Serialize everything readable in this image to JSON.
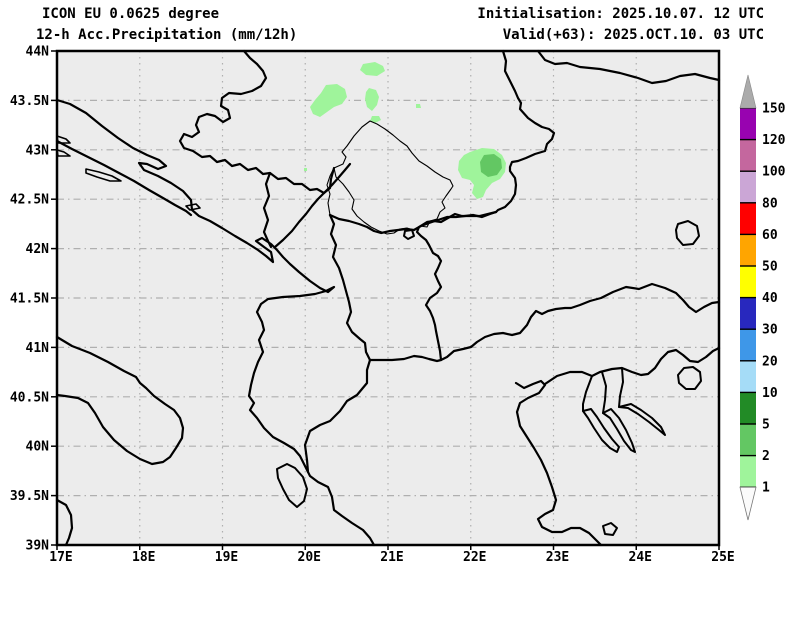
{
  "header": {
    "model_title": "ICON EU 0.0625 degree",
    "product_title": "12-h Acc.Precipitation (mm/12h)",
    "init_label": "Initialisation: 2025.10.07. 12 UTC",
    "valid_label": "Valid(+63): 2025.OCT.10. 03 UTC"
  },
  "map": {
    "lon_min": 17,
    "lon_max": 25,
    "lat_min": 39,
    "lat_max": 44,
    "lat_labels": [
      {
        "text": "44N",
        "lat": 44.0
      },
      {
        "text": "43.5N",
        "lat": 43.5
      },
      {
        "text": "43N",
        "lat": 43.0
      },
      {
        "text": "42.5N",
        "lat": 42.5
      },
      {
        "text": "42N",
        "lat": 42.0
      },
      {
        "text": "41.5N",
        "lat": 41.5
      },
      {
        "text": "41N",
        "lat": 41.0
      },
      {
        "text": "40.5N",
        "lat": 40.5
      },
      {
        "text": "40N",
        "lat": 40.0
      },
      {
        "text": "39.5N",
        "lat": 39.5
      },
      {
        "text": "39N",
        "lat": 39.0
      }
    ],
    "lon_labels": [
      {
        "text": "17E",
        "lon": 17
      },
      {
        "text": "18E",
        "lon": 18
      },
      {
        "text": "19E",
        "lon": 19
      },
      {
        "text": "20E",
        "lon": 20
      },
      {
        "text": "21E",
        "lon": 21
      },
      {
        "text": "22E",
        "lon": 22
      },
      {
        "text": "23E",
        "lon": 23
      },
      {
        "text": "24E",
        "lon": 24
      },
      {
        "text": "25E",
        "lon": 25
      }
    ],
    "grid_lats": [
      43.5,
      43.0,
      42.5,
      42.0,
      41.5,
      41.0,
      40.5,
      40.0,
      39.5
    ],
    "grid_lons": [
      18,
      19,
      20,
      21,
      22,
      23,
      24
    ],
    "bg_color": "#ECECEC",
    "grid_color": "#AFAFAF",
    "outline_color": "#000000"
  },
  "colorbar": {
    "levels": [
      1,
      2,
      5,
      10,
      20,
      30,
      40,
      50,
      60,
      80,
      100,
      120,
      150
    ],
    "segment_colors": [
      "#9FF49B",
      "#63C763",
      "#228B26",
      "#A5DCF7",
      "#3E97E8",
      "#2828BE",
      "#FFFF00",
      "#FFA500",
      "#FF0000",
      "#CBA6D6",
      "#C4679E",
      "#9803B0"
    ],
    "over_arrow_color": "#ABABAB",
    "under_arrow_color": "#FBFBFB",
    "label_color": "#000000"
  },
  "precip_colors": {
    "light": "#9FF49B",
    "medium": "#63C763"
  },
  "precip_areas": [
    {
      "name": "patch-nw-serbia-1",
      "level": "1-2 mm",
      "class": "light",
      "points": [
        [
          363,
          64
        ],
        [
          375,
          62
        ],
        [
          383,
          66
        ],
        [
          385,
          71
        ],
        [
          377,
          76
        ],
        [
          366,
          75
        ],
        [
          360,
          70
        ]
      ]
    },
    {
      "name": "patch-nw-serbia-2",
      "level": "1-2 mm",
      "class": "light",
      "points": [
        [
          326,
          85
        ],
        [
          337,
          84
        ],
        [
          345,
          89
        ],
        [
          347,
          97
        ],
        [
          342,
          104
        ],
        [
          334,
          107
        ],
        [
          327,
          112
        ],
        [
          320,
          117
        ],
        [
          313,
          114
        ],
        [
          310,
          107
        ],
        [
          315,
          100
        ],
        [
          321,
          93
        ]
      ]
    },
    {
      "name": "patch-nw-serbia-3",
      "level": "1-2 mm",
      "class": "light",
      "points": [
        [
          369,
          88
        ],
        [
          376,
          90
        ],
        [
          379,
          97
        ],
        [
          377,
          105
        ],
        [
          372,
          111
        ],
        [
          367,
          107
        ],
        [
          365,
          99
        ],
        [
          366,
          92
        ]
      ]
    },
    {
      "name": "patch-nw-serbia-4",
      "level": "1-2 mm",
      "class": "light",
      "points": [
        [
          372,
          116
        ],
        [
          379,
          116
        ],
        [
          381,
          120
        ],
        [
          375,
          123
        ],
        [
          370,
          121
        ]
      ]
    },
    {
      "name": "patch-dot-1",
      "level": "1-2 mm",
      "class": "light",
      "points": [
        [
          416,
          104
        ],
        [
          420,
          104
        ],
        [
          421,
          108
        ],
        [
          416,
          108
        ]
      ]
    },
    {
      "name": "patch-dot-2",
      "level": "1-2 mm",
      "class": "light",
      "points": [
        [
          304,
          168
        ],
        [
          307,
          168
        ],
        [
          307,
          171
        ],
        [
          304,
          171
        ]
      ]
    },
    {
      "name": "patch-e-serbia-outer",
      "level": "1-2 mm",
      "class": "light",
      "points": [
        [
          470,
          152
        ],
        [
          482,
          148
        ],
        [
          494,
          149
        ],
        [
          502,
          155
        ],
        [
          506,
          163
        ],
        [
          505,
          172
        ],
        [
          500,
          179
        ],
        [
          492,
          183
        ],
        [
          486,
          190
        ],
        [
          483,
          197
        ],
        [
          477,
          199
        ],
        [
          472,
          193
        ],
        [
          474,
          185
        ],
        [
          470,
          180
        ],
        [
          462,
          178
        ],
        [
          458,
          170
        ],
        [
          459,
          161
        ],
        [
          464,
          155
        ]
      ]
    },
    {
      "name": "patch-e-serbia-core",
      "level": "2-5 mm",
      "class": "medium",
      "points": [
        [
          484,
          155
        ],
        [
          494,
          154
        ],
        [
          501,
          159
        ],
        [
          502,
          168
        ],
        [
          497,
          175
        ],
        [
          488,
          177
        ],
        [
          481,
          172
        ],
        [
          480,
          162
        ]
      ]
    }
  ]
}
